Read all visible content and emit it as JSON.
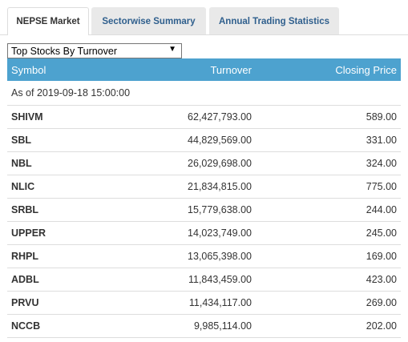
{
  "tabs": [
    {
      "label": "NEPSE Market",
      "active": true
    },
    {
      "label": "Sectorwise Summary",
      "active": false
    },
    {
      "label": "Annual Trading Statistics",
      "active": false
    }
  ],
  "filter": {
    "selected": "Top Stocks By Turnover"
  },
  "table": {
    "headers": {
      "symbol": "Symbol",
      "turnover": "Turnover",
      "closing_price": "Closing Price"
    },
    "as_of": "As of 2019-09-18 15:00:00",
    "rows": [
      {
        "symbol": "SHIVM",
        "turnover": "62,427,793.00",
        "closing_price": "589.00"
      },
      {
        "symbol": "SBL",
        "turnover": "44,829,569.00",
        "closing_price": "331.00"
      },
      {
        "symbol": "NBL",
        "turnover": "26,029,698.00",
        "closing_price": "324.00"
      },
      {
        "symbol": "NLIC",
        "turnover": "21,834,815.00",
        "closing_price": "775.00"
      },
      {
        "symbol": "SRBL",
        "turnover": "15,779,638.00",
        "closing_price": "244.00"
      },
      {
        "symbol": "UPPER",
        "turnover": "14,023,749.00",
        "closing_price": "245.00"
      },
      {
        "symbol": "RHPL",
        "turnover": "13,065,398.00",
        "closing_price": "169.00"
      },
      {
        "symbol": "ADBL",
        "turnover": "11,843,459.00",
        "closing_price": "423.00"
      },
      {
        "symbol": "PRVU",
        "turnover": "11,434,117.00",
        "closing_price": "269.00"
      },
      {
        "symbol": "NCCB",
        "turnover": "9,985,114.00",
        "closing_price": "202.00"
      }
    ]
  },
  "colors": {
    "header_bg": "#4da2cf",
    "tab_link": "#2f5f8d",
    "tab_inactive_bg": "#e9e9e9"
  }
}
